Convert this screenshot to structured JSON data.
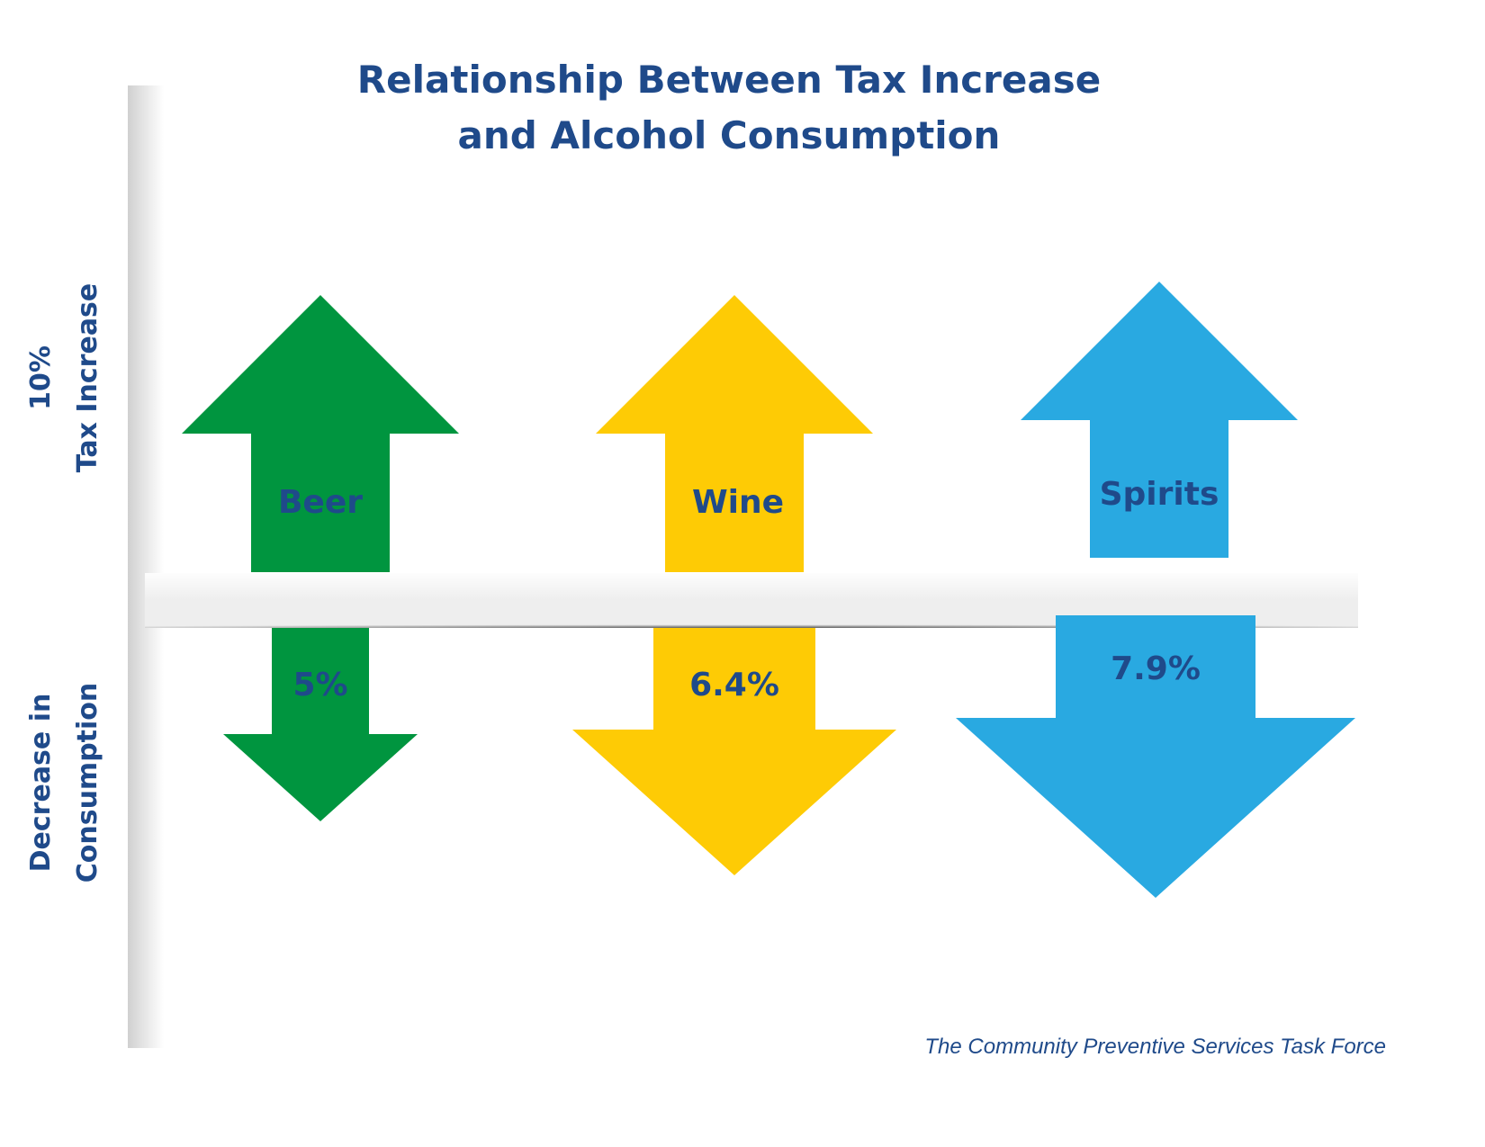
{
  "chart_data": {
    "type": "bar",
    "title_line1": "Relationship Between Tax Increase",
    "title_line2": "and Alcohol Consumption",
    "ylabel_top_line1": "10%",
    "ylabel_top_line2": "Tax Increase",
    "ylabel_bottom_line1": "Decrease in",
    "ylabel_bottom_line2": "Consumption",
    "categories": [
      "Beer",
      "Wine",
      "Spirits"
    ],
    "tax_increase_percent": 10,
    "decrease_values": [
      5,
      6.4,
      7.9
    ],
    "decrease_labels": [
      "5%",
      "6.4%",
      "7.9%"
    ],
    "colors": [
      "#00953f",
      "#fecb05",
      "#29a9e1"
    ],
    "source": "The Community Preventive Services Task Force"
  }
}
